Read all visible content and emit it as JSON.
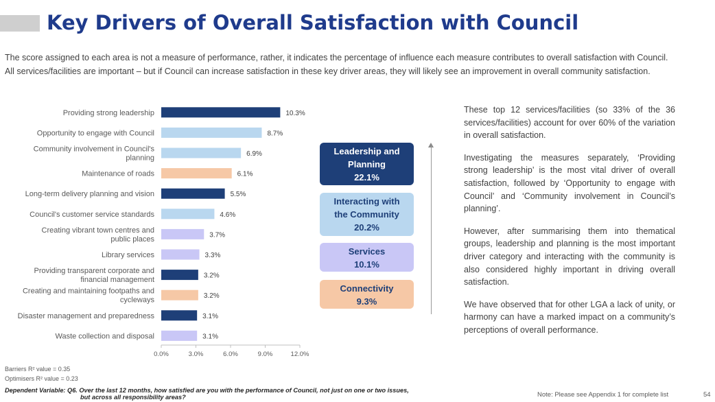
{
  "header": {
    "title": "Key Drivers of Overall Satisfaction with Council"
  },
  "intro": {
    "line1": "The score assigned to each area is not a measure of performance, rather, it indicates the percentage of influence each measure contributes to overall satisfaction with Council.",
    "line2": "All services/facilities are important – but if Council can increase satisfaction in these key driver areas, they will likely see an improvement in overall community satisfaction."
  },
  "colors": {
    "Leadership and Planning": "#1e3f78",
    "Interacting with the Community": "#b9d7ef",
    "Services": "#c9c7f6",
    "Connectivity": "#f6c8a6"
  },
  "chart_data": {
    "type": "bar",
    "orientation": "horizontal",
    "categories": [
      "Providing strong leadership",
      "Opportunity to engage with Council",
      "Community involvement in Council's planning",
      "Maintenance of roads",
      "Long-term delivery planning and vision",
      "Council's customer service standards",
      "Creating vibrant town centres and public places",
      "Library services",
      "Providing transparent corporate and financial management",
      "Creating and maintaining footpaths and cycleways",
      "Disaster management and preparedness",
      "Waste collection and disposal"
    ],
    "category_lines": [
      [
        "Providing strong leadership"
      ],
      [
        "Opportunity to engage with Council"
      ],
      [
        "Community involvement in Council's",
        "planning"
      ],
      [
        "Maintenance of roads"
      ],
      [
        "Long-term delivery planning and vision"
      ],
      [
        "Council's customer service standards"
      ],
      [
        "Creating vibrant town centres and",
        "public places"
      ],
      [
        "Library services"
      ],
      [
        "Providing transparent corporate and",
        "financial management"
      ],
      [
        "Creating and maintaining footpaths and",
        "cycleways"
      ],
      [
        "Disaster management and preparedness"
      ],
      [
        "Waste collection and disposal"
      ]
    ],
    "values": [
      10.3,
      8.7,
      6.9,
      6.1,
      5.5,
      4.6,
      3.7,
      3.3,
      3.2,
      3.2,
      3.1,
      3.1
    ],
    "value_labels": [
      "10.3%",
      "8.7%",
      "6.9%",
      "6.1%",
      "5.5%",
      "4.6%",
      "3.7%",
      "3.3%",
      "3.2%",
      "3.2%",
      "3.1%",
      "3.1%"
    ],
    "groups": [
      "Leadership and Planning",
      "Interacting with the Community",
      "Interacting with the Community",
      "Connectivity",
      "Leadership and Planning",
      "Interacting with the Community",
      "Services",
      "Services",
      "Leadership and Planning",
      "Connectivity",
      "Leadership and Planning",
      "Services"
    ],
    "xlim": [
      0,
      12
    ],
    "xticks": [
      "0.0%",
      "3.0%",
      "6.0%",
      "9.0%",
      "12.0%"
    ],
    "grid": false
  },
  "groups": [
    {
      "line1": "Leadership and",
      "line2": "Planning",
      "value": "22.1%"
    },
    {
      "line1": "Interacting with",
      "line2": "the Community",
      "value": "20.2%"
    },
    {
      "line1": "Services",
      "line2": "",
      "value": "10.1%"
    },
    {
      "line1": "Connectivity",
      "line2": "",
      "value": "9.3%"
    }
  ],
  "commentary": {
    "p1": "These top 12 services/facilities (so 33% of the 36 services/facilities) account for over 60% of the variation in overall satisfaction.",
    "p2": "Investigating the measures separately, ‘Providing strong leadership’ is the most vital driver of overall satisfaction, followed by ‘Opportunity to engage with Council’ and ‘Community involvement in Council’s planning’.",
    "p3": "However, after summarising them into thematical groups, leadership and planning is the most important driver category and interacting with the community is also considered highly important in driving overall satisfaction.",
    "p4": "We have observed that for other LGA a lack of unity, or harmony can have a marked impact on a community’s perceptions of overall performance."
  },
  "footer": {
    "barriers": "Barriers R² value = 0.35",
    "optimisers": "Optimisers R² value = 0.23",
    "dependent_line1": "Dependent Variable: Q6. Over the last 12 months, how satisfied are you with the performance of Council, not just on one or two issues,",
    "dependent_line2": "but across all responsibility areas?",
    "note": "Note: Please see Appendix 1 for complete list",
    "page_number": "54"
  }
}
